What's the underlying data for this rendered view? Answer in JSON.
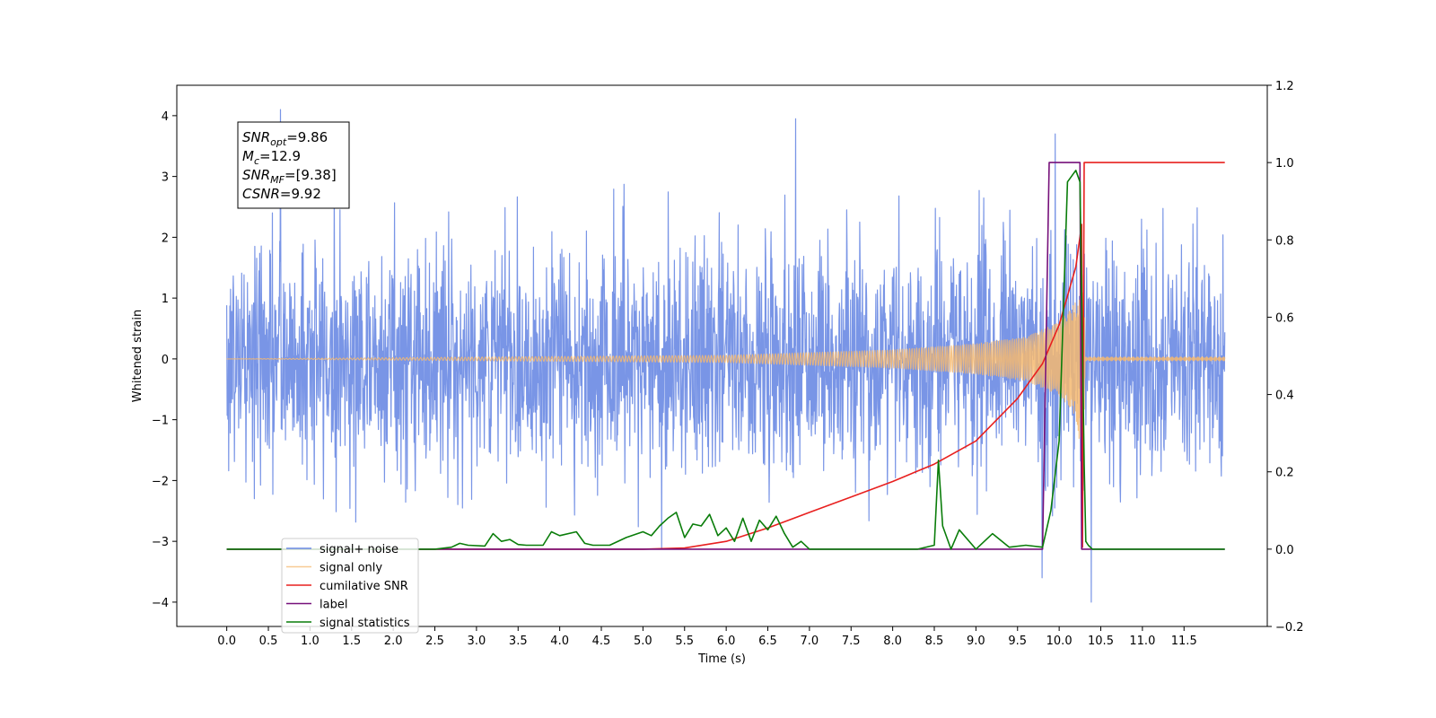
{
  "chart_data": {
    "type": "line",
    "xlabel": "Time (s)",
    "ylabel": "Whitened strain",
    "title": "",
    "xlim": [
      -0.6,
      12.5
    ],
    "ylim": [
      -4.4,
      4.5
    ],
    "y2lim": [
      -0.2,
      1.2
    ],
    "grid": false,
    "legend_position": "lower-left",
    "xticks": [
      "0.0",
      "0.5",
      "1.0",
      "1.5",
      "2.0",
      "2.5",
      "3.0",
      "3.5",
      "4.0",
      "4.5",
      "5.0",
      "5.5",
      "6.0",
      "6.5",
      "7.0",
      "7.5",
      "8.0",
      "8.5",
      "9.0",
      "9.5",
      "10.0",
      "10.5",
      "11.0",
      "11.5"
    ],
    "xtick_values": [
      0.0,
      0.5,
      1.0,
      1.5,
      2.0,
      2.5,
      3.0,
      3.5,
      4.0,
      4.5,
      5.0,
      5.5,
      6.0,
      6.5,
      7.0,
      7.5,
      8.0,
      8.5,
      9.0,
      9.5,
      10.0,
      10.5,
      11.0,
      11.5
    ],
    "yticks": [
      "−4",
      "−3",
      "−2",
      "−1",
      "0",
      "1",
      "2",
      "3",
      "4"
    ],
    "ytick_values": [
      -4,
      -3,
      -2,
      -1,
      0,
      1,
      2,
      3,
      4
    ],
    "y2ticks": [
      "−0.2",
      "0.0",
      "0.2",
      "0.4",
      "0.6",
      "0.8",
      "1.0",
      "1.2"
    ],
    "y2tick_values": [
      -0.2,
      0.0,
      0.2,
      0.4,
      0.6,
      0.8,
      1.0,
      1.2
    ],
    "annotation": [
      {
        "math": "SNR",
        "sub": "opt",
        "rest": "=9.86"
      },
      {
        "math": "M",
        "sub": "c",
        "rest": "=12.9"
      },
      {
        "math": "SNR",
        "sub": "MF",
        "rest": "=[9.38]"
      },
      {
        "math": "CSNR",
        "sub": "",
        "rest": "=9.92"
      }
    ],
    "series": [
      {
        "name": "signal+ noise",
        "color": "#6a89e3",
        "axis": "left",
        "kind": "noise",
        "x_range": [
          0.0,
          11.99
        ],
        "envelope_min": [
          -2.6,
          2.6
        ],
        "peaks": [
          4.1,
          -4.0
        ]
      },
      {
        "name": "signal only",
        "color": "#f5b870",
        "axis": "left",
        "kind": "chirp",
        "x_range": [
          0.0,
          11.99
        ],
        "merger_time": 10.3,
        "amplitude": {
          "x": [
            0.0,
            6.0,
            8.0,
            9.0,
            9.6,
            10.0,
            10.2,
            10.3,
            10.31,
            11.99
          ],
          "y": [
            0.0,
            0.06,
            0.15,
            0.25,
            0.36,
            0.6,
            0.95,
            1.9,
            0.03,
            0.03
          ]
        }
      },
      {
        "name": "cumilative SNR",
        "color": "#e8201f",
        "axis": "right",
        "x": [
          0.0,
          5.0,
          5.5,
          6.0,
          6.5,
          7.0,
          7.5,
          8.0,
          8.5,
          9.0,
          9.5,
          9.8,
          10.0,
          10.2,
          10.27,
          10.28,
          10.3,
          11.99
        ],
        "y": [
          0.0,
          0.0,
          0.003,
          0.02,
          0.055,
          0.095,
          0.135,
          0.175,
          0.22,
          0.28,
          0.39,
          0.48,
          0.58,
          0.73,
          0.84,
          0.005,
          1.0,
          1.0
        ]
      },
      {
        "name": "label",
        "color": "#76107a",
        "axis": "right",
        "x": [
          0.0,
          9.8,
          9.88,
          10.25,
          10.27,
          11.99
        ],
        "y": [
          0.0,
          0.0,
          1.0,
          1.0,
          0.0,
          0.0
        ]
      },
      {
        "name": "signal statistics",
        "color": "#0a7d0a",
        "axis": "right",
        "x": [
          0.0,
          2.2,
          2.5,
          2.7,
          2.8,
          2.9,
          3.1,
          3.2,
          3.3,
          3.4,
          3.5,
          3.6,
          3.8,
          3.9,
          4.0,
          4.2,
          4.3,
          4.4,
          4.6,
          4.8,
          5.0,
          5.1,
          5.2,
          5.3,
          5.4,
          5.5,
          5.6,
          5.7,
          5.8,
          5.9,
          6.0,
          6.1,
          6.2,
          6.3,
          6.4,
          6.5,
          6.6,
          6.7,
          6.8,
          6.9,
          7.0,
          7.2,
          7.5,
          8.0,
          8.3,
          8.5,
          8.55,
          8.6,
          8.7,
          8.8,
          9.0,
          9.2,
          9.4,
          9.6,
          9.8,
          9.9,
          10.0,
          10.1,
          10.2,
          10.25,
          10.3,
          10.32,
          10.35,
          10.4,
          11.99
        ],
        "y": [
          0.0,
          0.0,
          0.0,
          0.005,
          0.015,
          0.01,
          0.008,
          0.04,
          0.02,
          0.025,
          0.012,
          0.01,
          0.01,
          0.045,
          0.035,
          0.045,
          0.015,
          0.01,
          0.01,
          0.03,
          0.045,
          0.035,
          0.06,
          0.08,
          0.095,
          0.03,
          0.065,
          0.06,
          0.09,
          0.035,
          0.055,
          0.02,
          0.08,
          0.02,
          0.075,
          0.05,
          0.085,
          0.04,
          0.005,
          0.02,
          0.0,
          0.0,
          0.0,
          0.0,
          0.0,
          0.01,
          0.23,
          0.06,
          0.0,
          0.05,
          0.0,
          0.04,
          0.005,
          0.01,
          0.005,
          0.1,
          0.28,
          0.95,
          0.98,
          0.95,
          0.22,
          0.02,
          0.01,
          0.0,
          0.0
        ]
      }
    ]
  }
}
